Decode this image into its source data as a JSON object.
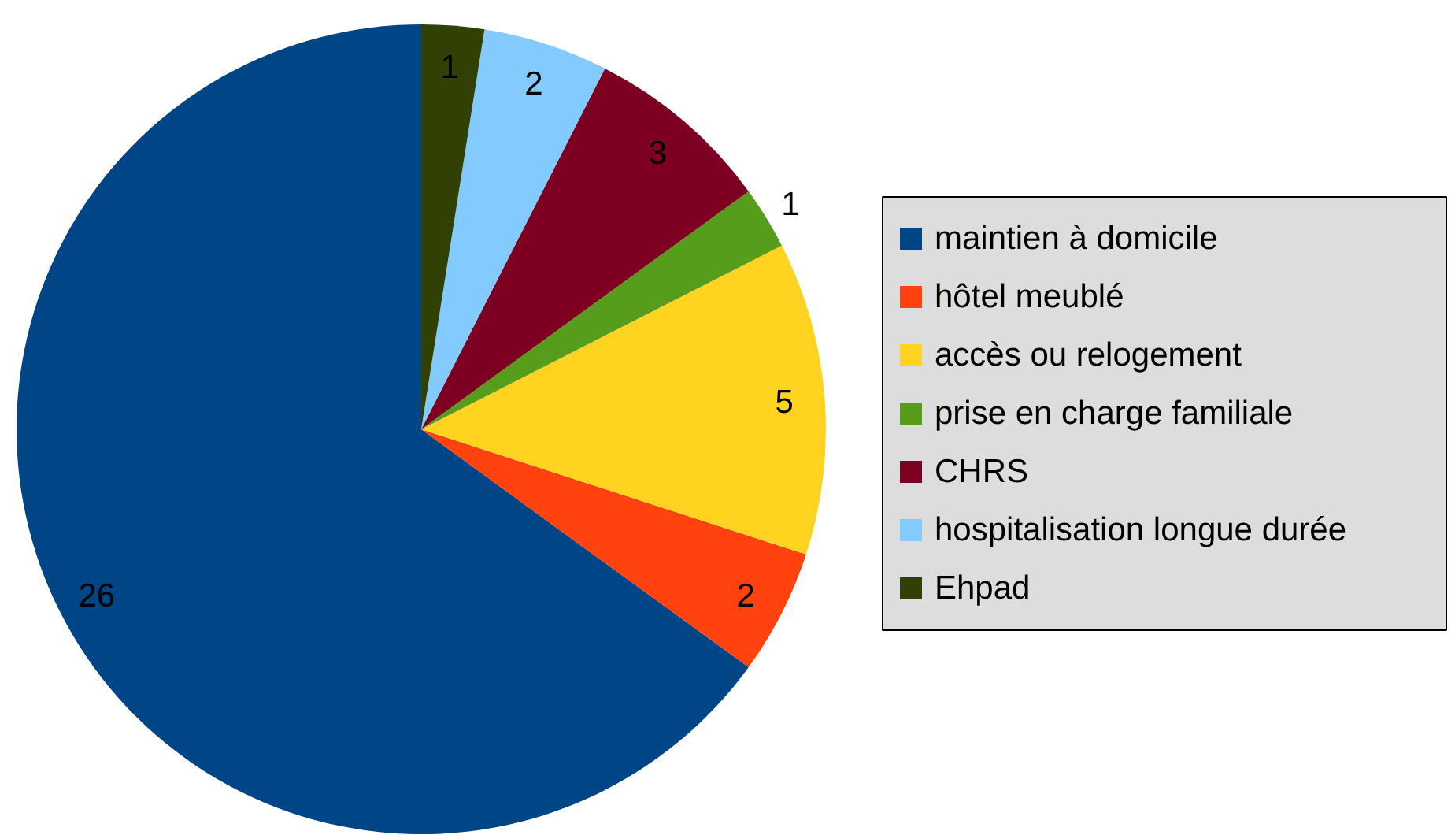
{
  "chart_data": {
    "type": "pie",
    "categories": [
      "maintien à domicile",
      "hôtel meublé",
      "accès ou relogement",
      "prise en charge familiale",
      "CHRS",
      "hospitalisation longue durée",
      "Ehpad"
    ],
    "values": [
      26,
      2,
      5,
      1,
      3,
      2,
      1
    ],
    "colors": [
      "#004586",
      "#ff420e",
      "#ffd320",
      "#579d1c",
      "#7e0021",
      "#83caff",
      "#314004"
    ],
    "data_labels": true,
    "legend": "right"
  }
}
